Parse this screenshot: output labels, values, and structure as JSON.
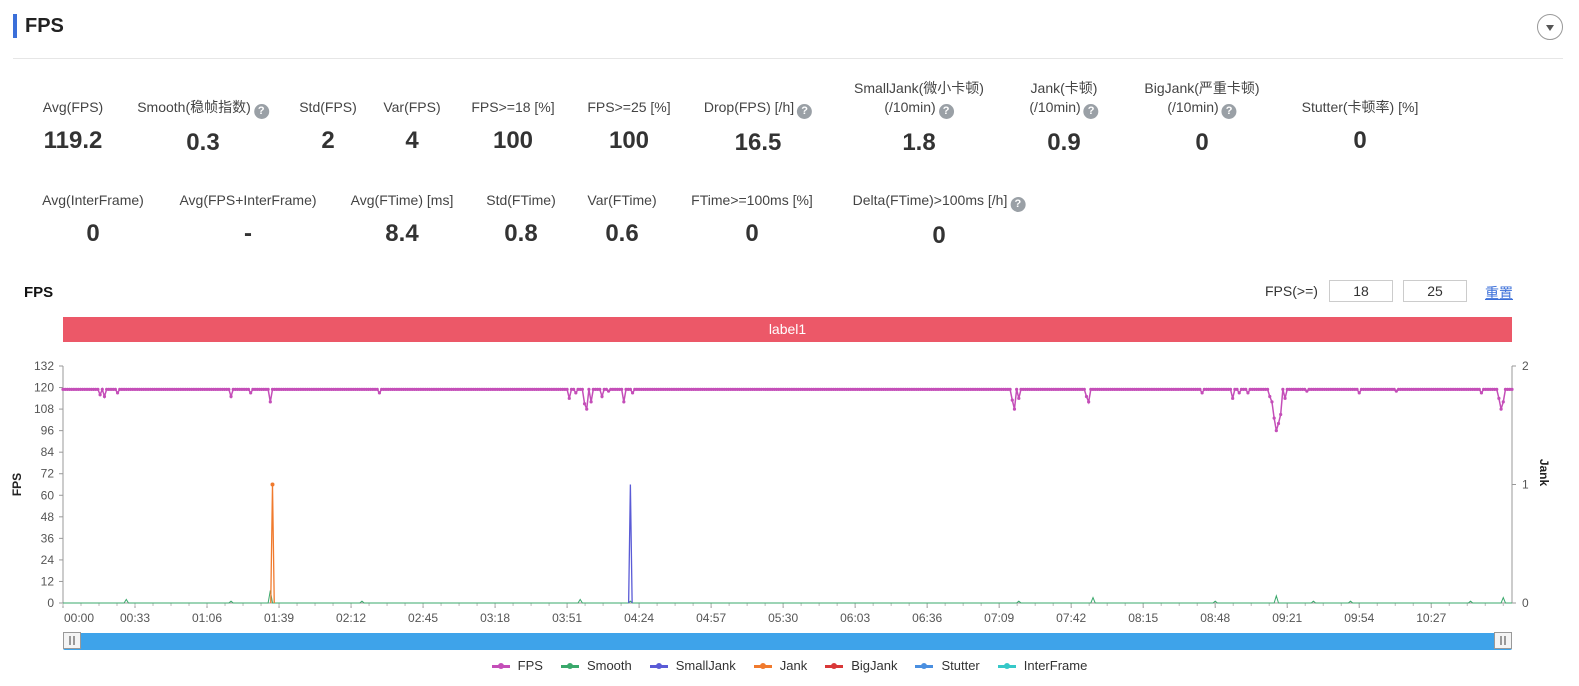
{
  "header": {
    "title": "FPS"
  },
  "stats_row1": [
    {
      "label": "Avg(FPS)",
      "value": "119.2",
      "help": false
    },
    {
      "label": "Smooth(稳帧指数)",
      "value": "0.3",
      "help": true
    },
    {
      "label": "Std(FPS)",
      "value": "2",
      "help": false
    },
    {
      "label": "Var(FPS)",
      "value": "4",
      "help": false
    },
    {
      "label": "FPS>=18 [%]",
      "value": "100",
      "help": false
    },
    {
      "label": "FPS>=25 [%]",
      "value": "100",
      "help": false
    },
    {
      "label": "Drop(FPS) [/h]",
      "value": "16.5",
      "help": true
    },
    {
      "label": "SmallJank(微小卡顿)",
      "label2": "(/10min)",
      "value": "1.8",
      "help": true
    },
    {
      "label": "Jank(卡顿)",
      "label2": "(/10min)",
      "value": "0.9",
      "help": true
    },
    {
      "label": "BigJank(严重卡顿)",
      "label2": "(/10min)",
      "value": "0",
      "help": true
    },
    {
      "label": "Stutter(卡顿率) [%]",
      "value": "0",
      "help": false
    }
  ],
  "stats_row2": [
    {
      "label": "Avg(InterFrame)",
      "value": "0",
      "help": false
    },
    {
      "label": "Avg(FPS+InterFrame)",
      "value": "-",
      "help": false
    },
    {
      "label": "Avg(FTime) [ms]",
      "value": "8.4",
      "help": false
    },
    {
      "label": "Std(FTime)",
      "value": "0.8",
      "help": false
    },
    {
      "label": "Var(FTime)",
      "value": "0.6",
      "help": false
    },
    {
      "label": "FTime>=100ms [%]",
      "value": "0",
      "help": false
    },
    {
      "label": "Delta(FTime)>100ms [/h]",
      "value": "0",
      "help": true
    }
  ],
  "help_glyph": "?",
  "chart_header": {
    "title": "FPS",
    "threshold_label": "FPS(>=)",
    "threshold1": "18",
    "threshold2": "25",
    "reset": "重置"
  },
  "label_bar": "label1",
  "colors": {
    "FPS": "#c44eb8",
    "Smooth": "#3aa86b",
    "SmallJank": "#5a5bd6",
    "Jank": "#f07a2d",
    "BigJank": "#d93838",
    "Stutter": "#4a8fe0",
    "InterFrame": "#36c8c8",
    "labelbar": "#ec5868",
    "slider": "#3ea3ea"
  },
  "chart_data": {
    "type": "line",
    "ylabel": "FPS",
    "y2label": "Jank",
    "ylim": [
      0,
      132
    ],
    "yticks": [
      0,
      12,
      24,
      36,
      48,
      60,
      72,
      84,
      96,
      108,
      120,
      132
    ],
    "y2lim": [
      0,
      2
    ],
    "y2ticks": [
      0,
      1,
      2
    ],
    "xlim_seconds": [
      0,
      664
    ],
    "xticks": [
      "00:00",
      "00:33",
      "01:06",
      "01:39",
      "02:12",
      "02:45",
      "03:18",
      "03:51",
      "04:24",
      "04:57",
      "05:30",
      "06:03",
      "06:36",
      "07:09",
      "07:42",
      "08:15",
      "08:48",
      "09:21",
      "09:54",
      "10:27"
    ],
    "series": [
      {
        "name": "FPS",
        "axis": "left",
        "baseline": 119,
        "dips": [
          [
            17,
            116
          ],
          [
            19,
            115
          ],
          [
            25,
            117
          ],
          [
            77,
            115
          ],
          [
            86,
            117
          ],
          [
            95,
            112
          ],
          [
            145,
            117
          ],
          [
            232,
            114
          ],
          [
            235,
            117
          ],
          [
            239,
            111
          ],
          [
            240,
            108
          ],
          [
            242,
            112
          ],
          [
            247,
            115
          ],
          [
            250,
            118
          ],
          [
            257,
            112
          ],
          [
            261,
            117
          ],
          [
            435,
            113
          ],
          [
            436,
            108
          ],
          [
            438,
            114
          ],
          [
            469,
            115
          ],
          [
            470,
            112
          ],
          [
            522,
            117
          ],
          [
            536,
            114
          ],
          [
            539,
            117
          ],
          [
            543,
            117
          ],
          [
            553,
            115
          ],
          [
            554,
            112
          ],
          [
            555,
            103
          ],
          [
            556,
            96
          ],
          [
            557,
            100
          ],
          [
            558,
            105
          ],
          [
            560,
            114
          ],
          [
            570,
            118
          ],
          [
            594,
            117
          ],
          [
            611,
            118
          ],
          [
            650,
            117
          ],
          [
            658,
            114
          ],
          [
            659,
            108
          ],
          [
            660,
            112
          ],
          [
            662,
            119
          ]
        ]
      },
      {
        "name": "Smooth",
        "axis": "left",
        "baseline": 0,
        "dips": [
          [
            29,
            2
          ],
          [
            77,
            1
          ],
          [
            95,
            7
          ],
          [
            137,
            1
          ],
          [
            237,
            2
          ],
          [
            260,
            1
          ],
          [
            438,
            1
          ],
          [
            472,
            3
          ],
          [
            528,
            1
          ],
          [
            556,
            4
          ],
          [
            573,
            1
          ],
          [
            590,
            1
          ],
          [
            645,
            1
          ],
          [
            660,
            3
          ]
        ]
      },
      {
        "name": "SmallJank",
        "axis": "right",
        "spikes": [
          [
            260,
            1
          ]
        ]
      },
      {
        "name": "Jank",
        "axis": "right",
        "spikes": [
          [
            96,
            1
          ]
        ]
      },
      {
        "name": "BigJank",
        "axis": "right",
        "spikes": []
      },
      {
        "name": "Stutter",
        "axis": "right",
        "spikes": []
      },
      {
        "name": "InterFrame",
        "axis": "left",
        "spikes": []
      }
    ]
  },
  "legend": [
    "FPS",
    "Smooth",
    "SmallJank",
    "Jank",
    "BigJank",
    "Stutter",
    "InterFrame"
  ]
}
